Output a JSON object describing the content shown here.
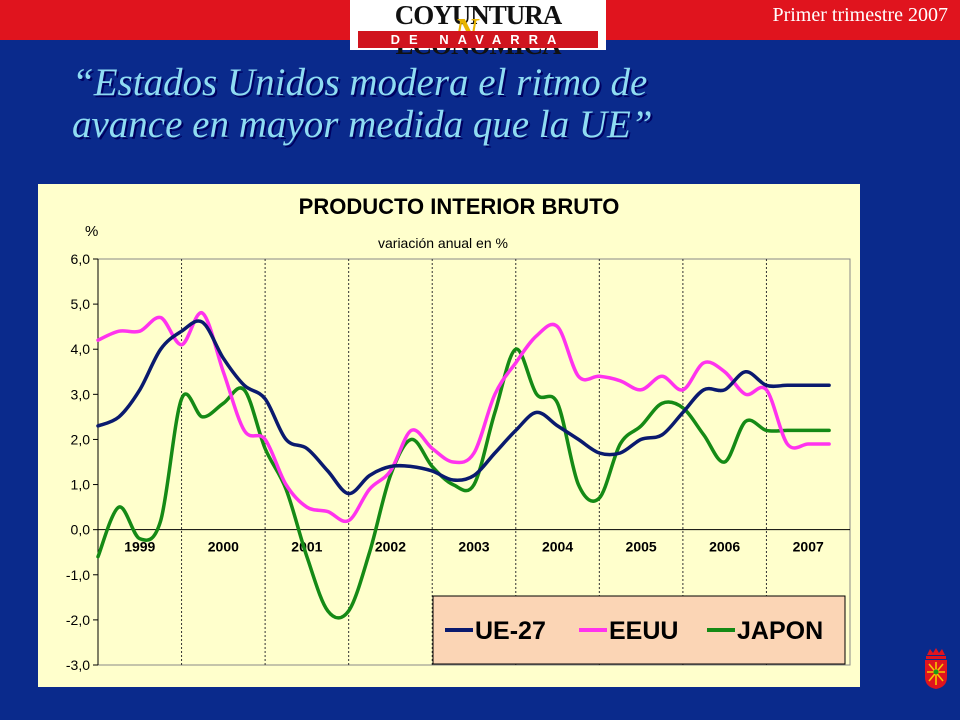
{
  "header": {
    "logo_top": "COYUNTURA ECONOMICA",
    "logo_bottom": "DE NAVARRA",
    "period": "Primer trimestre  2007"
  },
  "headline": {
    "line1": "“Estados Unidos modera el ritmo de",
    "line2": "avance en mayor medida que la UE”"
  },
  "colors": {
    "background": "#0a2a8c",
    "topbar": "#e0141e",
    "headline": "#8fdcf2",
    "panel": "#ffffcc",
    "legend_box": "#fbd5b5"
  },
  "crest_icon": "navarra-coat-of-arms-icon",
  "chart_data": {
    "type": "line",
    "title": "PRODUCTO INTERIOR BRUTO",
    "subtitle": "variación anual en %",
    "ylabel": "%",
    "ylim": [
      -3,
      6
    ],
    "yticks": [
      "6,0",
      "5,0",
      "4,0",
      "3,0",
      "2,0",
      "1,0",
      "0,0",
      "-1,0",
      "-2,0",
      "-3,0"
    ],
    "xlim": [
      1998.0,
      2007.0
    ],
    "year_labels": [
      "1999",
      "2000",
      "2001",
      "2002",
      "2003",
      "2004",
      "2005",
      "2006",
      "2007"
    ],
    "grid": "vertical dotted lines at year boundaries",
    "legend_position": "bottom-right",
    "series": [
      {
        "name": "UE-27",
        "color": "#0a1a6e",
        "x": [
          1998.0,
          1998.25,
          1998.5,
          1998.75,
          1999.0,
          1999.25,
          1999.5,
          1999.75,
          2000.0,
          2000.25,
          2000.5,
          2000.75,
          2001.0,
          2001.25,
          2001.5,
          2001.75,
          2002.0,
          2002.25,
          2002.5,
          2002.75,
          2003.0,
          2003.25,
          2003.5,
          2003.75,
          2004.0,
          2004.25,
          2004.5,
          2004.75,
          2005.0,
          2005.25,
          2005.5,
          2005.75,
          2006.0,
          2006.25,
          2006.5,
          2006.75
        ],
        "values": [
          2.3,
          2.5,
          3.1,
          4.0,
          4.4,
          4.6,
          3.8,
          3.2,
          2.9,
          2.0,
          1.8,
          1.3,
          0.8,
          1.2,
          1.4,
          1.4,
          1.3,
          1.1,
          1.2,
          1.7,
          2.2,
          2.6,
          2.3,
          2.0,
          1.7,
          1.7,
          2.0,
          2.1,
          2.6,
          3.1,
          3.1,
          3.5,
          3.2,
          3.2,
          3.2,
          3.2
        ]
      },
      {
        "name": "EEUU",
        "color": "#ff33ee",
        "x": [
          1998.0,
          1998.25,
          1998.5,
          1998.75,
          1999.0,
          1999.25,
          1999.5,
          1999.75,
          2000.0,
          2000.25,
          2000.5,
          2000.75,
          2001.0,
          2001.25,
          2001.5,
          2001.75,
          2002.0,
          2002.25,
          2002.5,
          2002.75,
          2003.0,
          2003.25,
          2003.5,
          2003.75,
          2004.0,
          2004.25,
          2004.5,
          2004.75,
          2005.0,
          2005.25,
          2005.5,
          2005.75,
          2006.0,
          2006.25,
          2006.5,
          2006.75
        ],
        "values": [
          4.2,
          4.4,
          4.4,
          4.7,
          4.1,
          4.8,
          3.5,
          2.2,
          2.0,
          1.0,
          0.5,
          0.4,
          0.2,
          0.9,
          1.3,
          2.2,
          1.8,
          1.5,
          1.7,
          3.0,
          3.7,
          4.3,
          4.5,
          3.4,
          3.4,
          3.3,
          3.1,
          3.4,
          3.1,
          3.7,
          3.5,
          3.0,
          3.1,
          1.9,
          1.9,
          1.9
        ]
      },
      {
        "name": "JAPON",
        "color": "#158a15",
        "x": [
          1998.0,
          1998.25,
          1998.5,
          1998.75,
          1999.0,
          1999.25,
          1999.5,
          1999.75,
          2000.0,
          2000.25,
          2000.5,
          2000.75,
          2001.0,
          2001.25,
          2001.5,
          2001.75,
          2002.0,
          2002.25,
          2002.5,
          2002.75,
          2003.0,
          2003.25,
          2003.5,
          2003.75,
          2004.0,
          2004.25,
          2004.5,
          2004.75,
          2005.0,
          2005.25,
          2005.5,
          2005.75,
          2006.0,
          2006.25,
          2006.5,
          2006.75
        ],
        "values": [
          -0.6,
          0.5,
          -0.2,
          0.2,
          2.9,
          2.5,
          2.8,
          3.1,
          1.8,
          0.9,
          -0.6,
          -1.8,
          -1.8,
          -0.5,
          1.2,
          2.0,
          1.4,
          1.0,
          1.0,
          2.6,
          4.0,
          3.0,
          2.8,
          1.0,
          0.7,
          1.9,
          2.3,
          2.8,
          2.7,
          2.1,
          1.5,
          2.4,
          2.2,
          2.2,
          2.2,
          2.2
        ]
      }
    ]
  }
}
